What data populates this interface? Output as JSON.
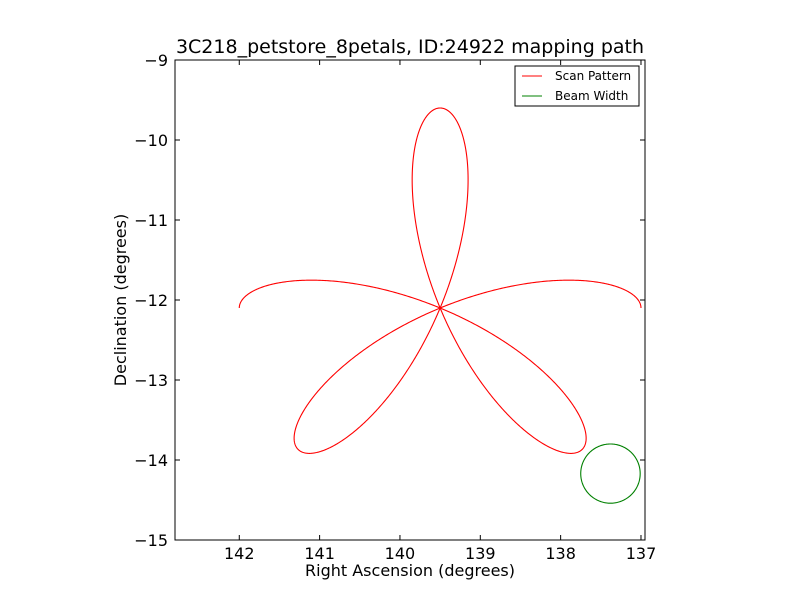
{
  "chart_data": {
    "type": "line",
    "title": "3C218_petstore_8petals, ID:24922 mapping path",
    "xlabel": "Right Ascension (degrees)",
    "ylabel": "Declination (degrees)",
    "xlim": [
      142.8,
      136.95
    ],
    "ylim": [
      -15,
      -9
    ],
    "x_inverted": true,
    "xticks": [
      142,
      141,
      140,
      139,
      138,
      137
    ],
    "yticks": [
      -15,
      -14,
      -13,
      -12,
      -11,
      -10,
      -9
    ],
    "xtick_labels": [
      "142",
      "141",
      "140",
      "139",
      "138",
      "137"
    ],
    "ytick_labels": [
      "−15",
      "−14",
      "−13",
      "−12",
      "−11",
      "−10",
      "−9"
    ],
    "grid": false,
    "legend_position": "top-right",
    "series": [
      {
        "name": "Scan Pattern",
        "kind": "rose",
        "color": "#ff0000",
        "center": [
          139.5,
          -12.1
        ],
        "petals": 8,
        "radius_deg": 2.5
      },
      {
        "name": "Beam Width",
        "kind": "circle",
        "color": "#008000",
        "center": [
          137.38,
          -14.17
        ],
        "radius_deg": 0.37
      }
    ]
  }
}
